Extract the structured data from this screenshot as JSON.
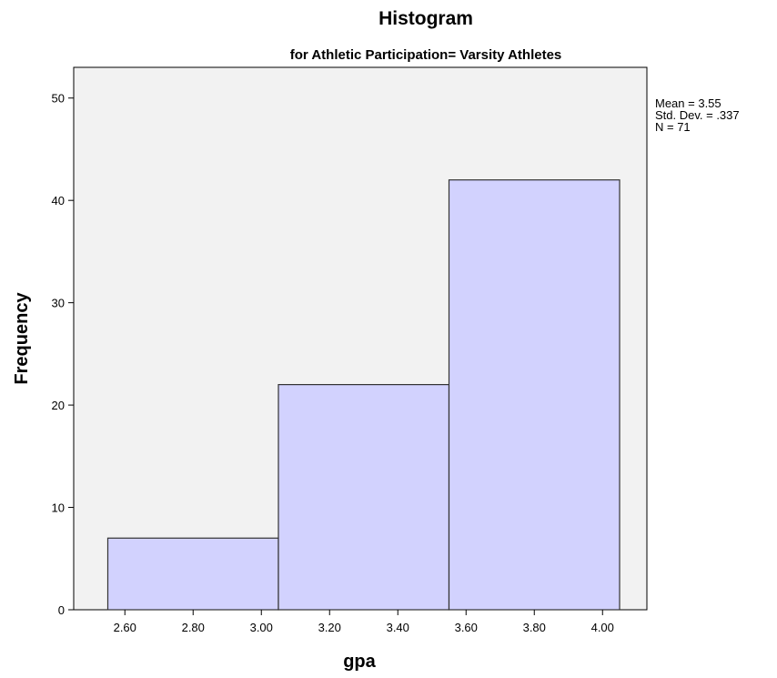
{
  "chart_data": {
    "type": "bar",
    "title": "Histogram",
    "subtitle": "for Athletic Participation= Varsity Athletes",
    "xlabel": "gpa",
    "ylabel": "Frequency",
    "bins": [
      {
        "start": 2.55,
        "end": 3.05,
        "value": 7
      },
      {
        "start": 3.05,
        "end": 3.55,
        "value": 22
      },
      {
        "start": 3.55,
        "end": 4.05,
        "value": 42
      }
    ],
    "xlim": [
      2.45,
      4.13
    ],
    "ylim": [
      0,
      53
    ],
    "x_ticks": [
      "2.60",
      "2.80",
      "3.00",
      "3.20",
      "3.40",
      "3.60",
      "3.80",
      "4.00"
    ],
    "y_ticks": [
      "0",
      "10",
      "20",
      "30",
      "40",
      "50"
    ],
    "grid": false,
    "stats": [
      "Mean = 3.55",
      "Std. Dev. = .337",
      "N = 71"
    ],
    "colors": {
      "bar_fill": "#d2d2fe",
      "bar_stroke": "#333333",
      "plot_background": "#f2f2f2",
      "axis": "#000000"
    }
  }
}
